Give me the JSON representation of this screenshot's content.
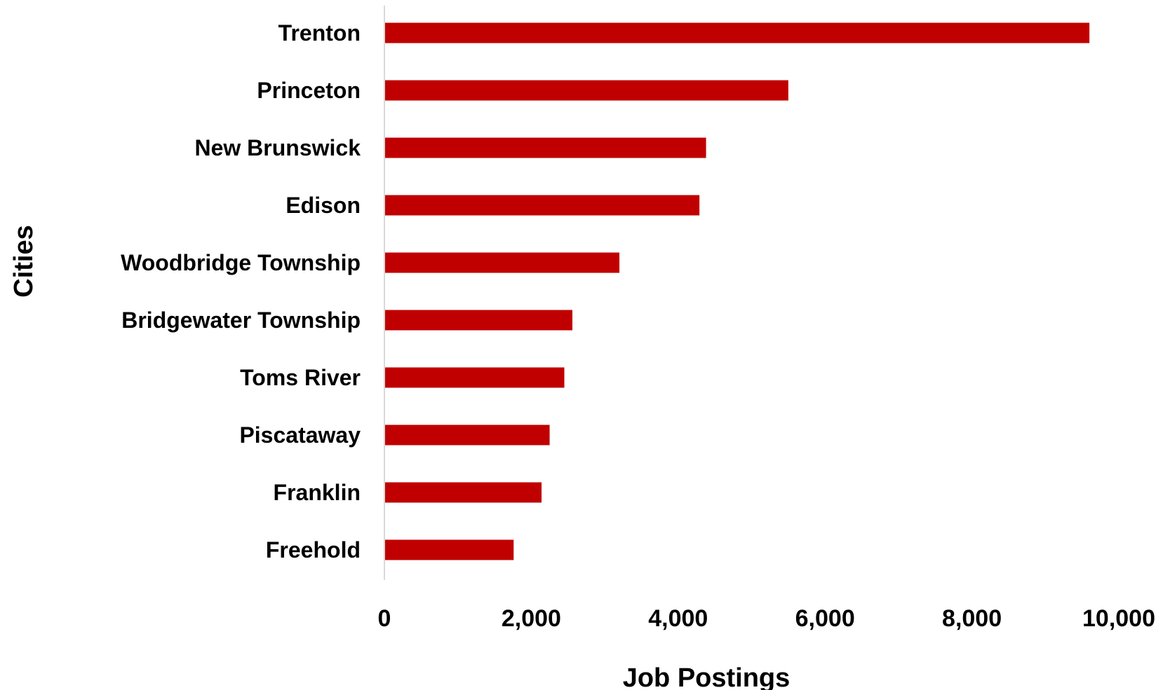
{
  "chart_data": {
    "type": "bar",
    "orientation": "horizontal",
    "title": "",
    "xlabel": "Job Postings",
    "ylabel": "Cities",
    "categories": [
      "Trenton",
      "Princeton",
      "New Brunswick",
      "Edison",
      "Woodbridge Township",
      "Bridgewater Township",
      "Toms River",
      "Piscataway",
      "Franklin",
      "Freehold"
    ],
    "values": [
      9600,
      5500,
      4380,
      4290,
      3200,
      2560,
      2450,
      2250,
      2140,
      1760
    ],
    "xlim": [
      0,
      10000
    ],
    "xticks": [
      "0",
      "2,000",
      "4,000",
      "6,000",
      "8,000",
      "10,000"
    ],
    "grid": false,
    "legend": "none",
    "colors": {
      "bar": "#c00000",
      "axis": "#d9d9d9"
    }
  }
}
